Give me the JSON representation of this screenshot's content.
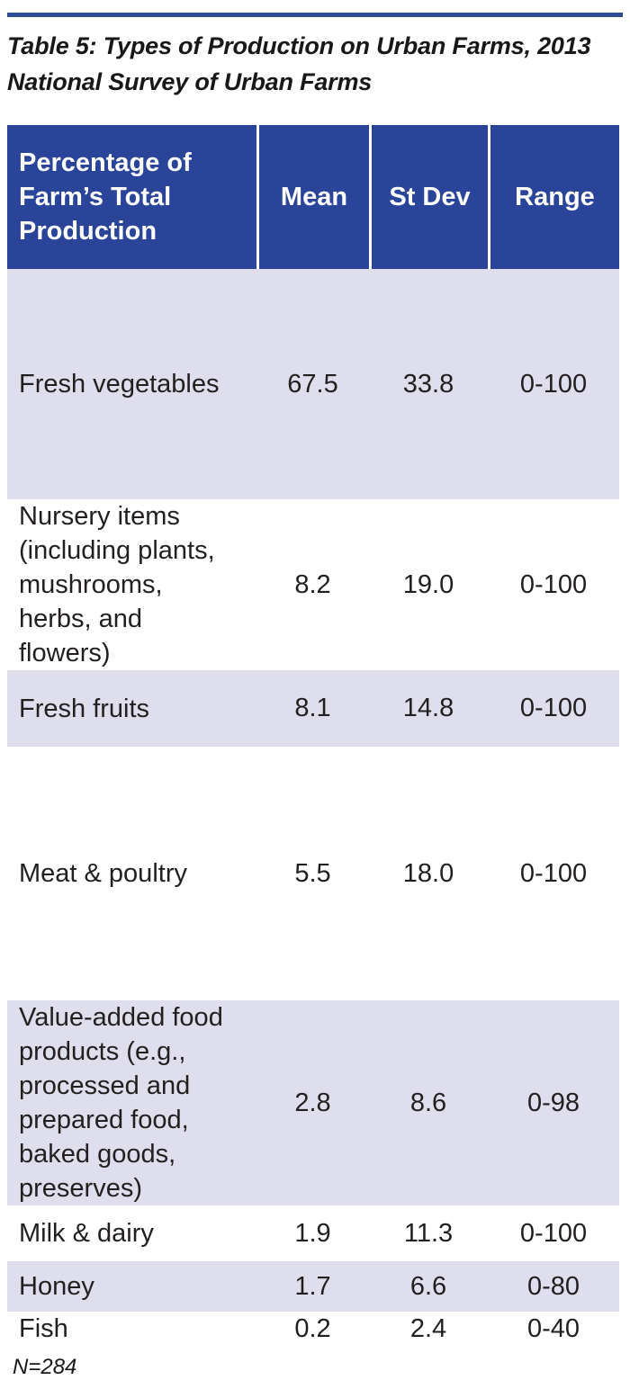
{
  "page": {
    "title": "Table 5: Types of Production on Urban Farms, 2013\nNational Survey of Urban Farms",
    "footnote": "N=284"
  },
  "table": {
    "columns": {
      "label": "Percentage of\nFarm’s Total\nProduction",
      "mean": "Mean",
      "st_dev": "St Dev",
      "range": "Range"
    },
    "rows": [
      {
        "label": "Fresh vegetables",
        "mean": "67.5",
        "st_dev": "33.8",
        "range": "0-100"
      },
      {
        "label": "Nursery items\n(including plants,\nmushrooms,\nherbs, and\nflowers)",
        "mean": "8.2",
        "st_dev": "19.0",
        "range": "0-100"
      },
      {
        "label": "Fresh fruits",
        "mean": "8.1",
        "st_dev": "14.8",
        "range": "0-100"
      },
      {
        "label": "Meat & poultry",
        "mean": "5.5",
        "st_dev": "18.0",
        "range": "0-100"
      },
      {
        "label": "Value-added food\nproducts (e.g.,\nprocessed and\nprepared food,\nbaked goods,\npreserves)",
        "mean": "2.8",
        "st_dev": "8.6",
        "range": "0-98"
      },
      {
        "label": "Milk & dairy",
        "mean": "1.9",
        "st_dev": "11.3",
        "range": "0-100"
      },
      {
        "label": "Honey",
        "mean": "1.7",
        "st_dev": "6.6",
        "range": "0-80"
      },
      {
        "label": "Fish",
        "mean": "0.2",
        "st_dev": "2.4",
        "range": "0-40"
      }
    ]
  },
  "colors": {
    "header_bg": "#294499",
    "row_alt_bg": "#DEDEED",
    "top_rule": "#2C4C94",
    "text": "#231F20",
    "header_text": "#FFFFFF"
  }
}
